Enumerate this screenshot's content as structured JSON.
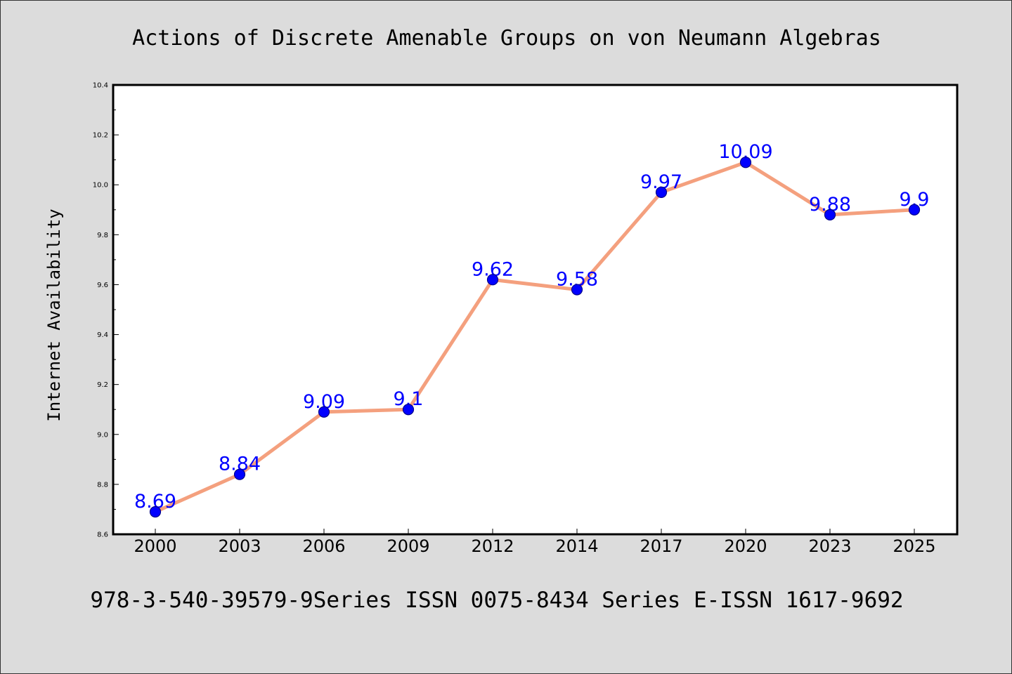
{
  "header": {
    "title": "Actions of Discrete Amenable Groups on von Neumann Algebras"
  },
  "footer": {
    "text": "978-3-540-39579-9Series ISSN 0075-8434 Series E-ISSN 1617-9692"
  },
  "colors": {
    "background": "#dcdcdc",
    "plot_background": "#ffffff",
    "line": "#f4a07e",
    "marker_fill": "#0000ff",
    "marker_stroke": "#00008b",
    "data_label": "#0000ff"
  },
  "chart_data": {
    "type": "line",
    "title": "Actions of Discrete Amenable Groups on von Neumann Algebras",
    "xlabel": "",
    "ylabel": "Internet Availability",
    "categories": [
      "2000",
      "2003",
      "2006",
      "2009",
      "2012",
      "2014",
      "2017",
      "2020",
      "2023",
      "2025"
    ],
    "series": [
      {
        "values": [
          8.69,
          8.84,
          9.09,
          9.1,
          9.62,
          9.58,
          9.97,
          10.09,
          9.88,
          9.9
        ],
        "labels": [
          "8.69",
          "8.84",
          "9.09",
          "9.1",
          "9.62",
          "9.58",
          "9.97",
          "10.09",
          "9.88",
          "9.9"
        ]
      }
    ],
    "ylim": [
      8.6,
      10.4
    ],
    "yticks": [
      "8.6",
      "8.8",
      "9.0",
      "9.2",
      "9.4",
      "9.6",
      "9.8",
      "10.0",
      "10.2",
      "10.4"
    ],
    "grid": false,
    "legend": "none"
  }
}
